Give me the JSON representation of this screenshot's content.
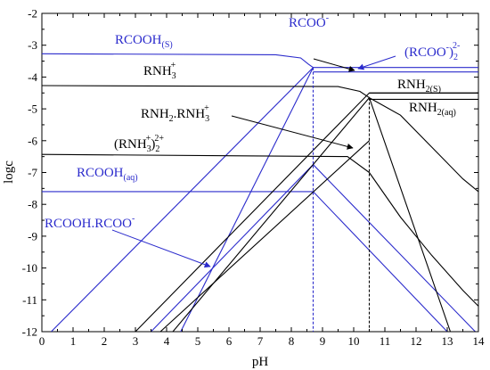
{
  "chart_data": {
    "type": "line",
    "xlabel": "pH",
    "ylabel": "logc",
    "xlim": [
      0,
      14
    ],
    "ylim": [
      -12,
      -2
    ],
    "x_ticks": [
      "0",
      "1",
      "2",
      "3",
      "4",
      "5",
      "6",
      "7",
      "8",
      "9",
      "10",
      "11",
      "12",
      "13",
      "14"
    ],
    "y_ticks": [
      "-2",
      "-3",
      "-4",
      "-5",
      "-6",
      "-7",
      "-8",
      "-9",
      "-10",
      "-11",
      "-12"
    ],
    "grid": false,
    "colors": {
      "blue": "#2b2bcc",
      "black": "#000000"
    },
    "series": [
      {
        "color": "blue",
        "x": [
          0,
          7.5,
          8.3,
          8.55,
          8.7,
          14
        ],
        "y": [
          -3.27,
          -3.3,
          -3.4,
          -3.6,
          -3.7,
          -3.7
        ],
        "style": "solid"
      },
      {
        "color": "blue",
        "x": [
          8.7,
          14
        ],
        "y": [
          -3.84,
          -3.84
        ],
        "style": "solid"
      },
      {
        "color": "blue",
        "x": [
          0.3,
          8.7
        ],
        "y": [
          -12,
          -3.7
        ],
        "style": "solid"
      },
      {
        "color": "blue",
        "x": [
          4.45,
          8.7
        ],
        "y": [
          -12,
          -3.7
        ],
        "style": "solid"
      },
      {
        "color": "blue",
        "x": [
          0,
          8.7,
          13.0
        ],
        "y": [
          -7.6,
          -7.6,
          -12
        ],
        "style": "solid"
      },
      {
        "color": "blue",
        "x": [
          3.5,
          8.7,
          13.9
        ],
        "y": [
          -12,
          -6.75,
          -12
        ],
        "style": "solid"
      },
      {
        "color": "black",
        "x": [
          0,
          9.5,
          10.2,
          10.5
        ],
        "y": [
          -4.27,
          -4.3,
          -4.45,
          -4.65
        ],
        "style": "solid"
      },
      {
        "color": "black",
        "x": [
          10.5,
          11.5,
          12.5,
          13.5,
          14
        ],
        "y": [
          -4.65,
          -5.2,
          -6.2,
          -7.2,
          -7.6
        ],
        "style": "solid"
      },
      {
        "color": "black",
        "x": [
          0,
          9.8,
          10.5
        ],
        "y": [
          -6.43,
          -6.5,
          -7.0
        ],
        "style": "solid"
      },
      {
        "color": "black",
        "x": [
          10.5,
          11.5,
          12.5,
          13.5,
          14
        ],
        "y": [
          -7.0,
          -8.4,
          -9.6,
          -10.7,
          -11.2
        ],
        "style": "solid"
      },
      {
        "color": "black",
        "x": [
          10.5,
          14
        ],
        "y": [
          -4.5,
          -4.5
        ],
        "style": "solid"
      },
      {
        "color": "black",
        "x": [
          3.0,
          10.5,
          14
        ],
        "y": [
          -12,
          -4.5,
          -4.5
        ],
        "style": "solid"
      },
      {
        "color": "black",
        "x": [
          3.8,
          10.5
        ],
        "y": [
          -12,
          -6.0
        ],
        "style": "solid"
      },
      {
        "color": "black",
        "x": [
          4.2,
          10.5,
          13.1
        ],
        "y": [
          -12,
          -4.65,
          -12
        ],
        "style": "solid"
      },
      {
        "color": "black",
        "x": [
          10.5,
          14
        ],
        "y": [
          -4.7,
          -4.7
        ],
        "style": "solid"
      },
      {
        "color": "blue",
        "x": [
          8.7,
          8.7
        ],
        "y": [
          -3.7,
          -12
        ],
        "style": "dashed"
      },
      {
        "color": "black",
        "x": [
          10.5,
          10.5
        ],
        "y": [
          -4.65,
          -12
        ],
        "style": "dashed"
      }
    ],
    "annotations": [
      {
        "id": "rcooh-s",
        "main": "RCOOH",
        "sub": "(S)",
        "sup": "",
        "color": "blue"
      },
      {
        "id": "rcoo-minus",
        "main": "RCOO",
        "sub": "",
        "sup": "-",
        "color": "blue"
      },
      {
        "id": "rcoo2",
        "main": "(RCOO",
        "sup": "-",
        "close": ")",
        "sub": "2",
        "sup2": "2-",
        "color": "blue"
      },
      {
        "id": "rnh3",
        "main": "RNH",
        "sub": "3",
        "sup": "+",
        "color": "black"
      },
      {
        "id": "rnh2-s",
        "main": "RNH",
        "sub": "2(S)",
        "sup": "",
        "color": "black"
      },
      {
        "id": "rnh2-rnh3",
        "main": "RNH",
        "sub": "2",
        "mid": ".RNH",
        "sub2": "3",
        "sup2": "+",
        "color": "black"
      },
      {
        "id": "rnh2-aq",
        "main": "RNH",
        "sub": "2(aq)",
        "sup": "",
        "color": "black"
      },
      {
        "id": "rnh3-2",
        "main": "(RNH",
        "sub": "3",
        "sup": "+",
        "close": ")",
        "sub3": "2",
        "sup3": "2+",
        "color": "black"
      },
      {
        "id": "rcooh-aq",
        "main": "RCOOH",
        "sub": "(aq)",
        "sup": "",
        "color": "blue"
      },
      {
        "id": "rcooh-rcoo",
        "main": "RCOOH.RCOO",
        "sub": "",
        "sup": "-",
        "color": "blue"
      }
    ]
  }
}
